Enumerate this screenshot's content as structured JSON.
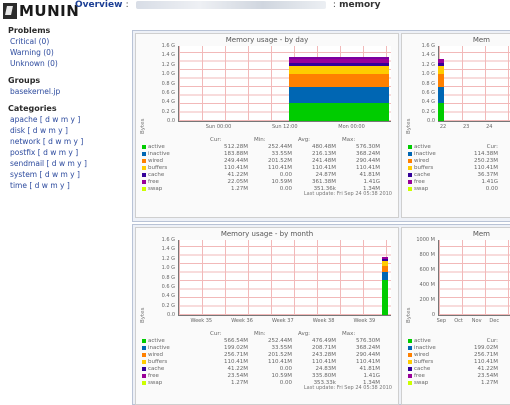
{
  "header": {
    "logo_text": "MUNIN",
    "overview_label": "Overview",
    "separator": ":",
    "page_label": "memory"
  },
  "sidebar": {
    "problems": {
      "title": "Problems",
      "items": [
        "Critical (0)",
        "Warning (0)",
        "Unknown (0)"
      ]
    },
    "groups": {
      "title": "Groups",
      "items": [
        "basekernel.jp"
      ]
    },
    "categories": {
      "title": "Categories",
      "items": [
        "apache",
        "disk",
        "network",
        "postfix",
        "sendmail",
        "system",
        "time"
      ],
      "dwmy": "[ d w m y ]"
    }
  },
  "graphs": {
    "day": {
      "title": "Memory usage - by day",
      "ylabel": "Bytes",
      "yticks": [
        "1.6 G",
        "1.4 G",
        "1.2 G",
        "1.0 G",
        "0.8 G",
        "0.6 G",
        "0.4 G",
        "0.2 G",
        "0.0"
      ],
      "xticks": [
        "Sun 00:00",
        "Sun 12:00",
        "Mon 00:00"
      ],
      "columns": [
        "Cur:",
        "Min:",
        "Avg:",
        "Max:"
      ],
      "rows": [
        {
          "name": "active",
          "color": "#00cc00",
          "cur": "512.28M",
          "min": "252.44M",
          "avg": "480.48M",
          "max": "576.30M"
        },
        {
          "name": "inactive",
          "color": "#0066b3",
          "cur": "183.88M",
          "min": "33.55M",
          "avg": "216.13M",
          "max": "368.24M"
        },
        {
          "name": "wired",
          "color": "#ff8000",
          "cur": "249.44M",
          "min": "201.52M",
          "avg": "241.48M",
          "max": "290.44M"
        },
        {
          "name": "buffers",
          "color": "#ffcc00",
          "cur": "110.41M",
          "min": "110.41M",
          "avg": "110.41M",
          "max": "110.41M"
        },
        {
          "name": "cache",
          "color": "#330099",
          "cur": "41.22M",
          "min": "0.00",
          "avg": "24.87M",
          "max": "41.81M"
        },
        {
          "name": "free",
          "color": "#990099",
          "cur": "22.05M",
          "min": "10.59M",
          "avg": "361.38M",
          "max": "1.41G"
        },
        {
          "name": "swap",
          "color": "#ccff00",
          "cur": "1.27M",
          "min": "0.00",
          "avg": "351.36k",
          "max": "1.34M"
        }
      ],
      "last_update": "Last update: Fri Sep 24 05:38 2010"
    },
    "week": {
      "title": "Mem",
      "ylabel": "Bytes",
      "yticks": [
        "1.6 G",
        "1.4 G",
        "1.2 G",
        "1.0 G",
        "0.8 G",
        "0.6 G",
        "0.4 G",
        "0.2 G",
        "0.0"
      ],
      "xticks": [
        "22",
        "23",
        "24"
      ],
      "rows": [
        {
          "name": "active",
          "color": "#00cc00",
          "cur": "Cur:"
        },
        {
          "name": "inactive",
          "color": "#0066b3",
          "cur": "114.38M"
        },
        {
          "name": "wired",
          "color": "#ff8000",
          "cur": "250.23M"
        },
        {
          "name": "buffers",
          "color": "#ffcc00",
          "cur": "110.41M"
        },
        {
          "name": "cache",
          "color": "#330099",
          "cur": "36.37M"
        },
        {
          "name": "free",
          "color": "#990099",
          "cur": "1.41G"
        },
        {
          "name": "swap",
          "color": "#ccff00",
          "cur": "0.00"
        }
      ]
    },
    "month": {
      "title": "Memory usage - by month",
      "ylabel": "Bytes",
      "yticks": [
        "1.6 G",
        "1.4 G",
        "1.2 G",
        "1.0 G",
        "0.8 G",
        "0.6 G",
        "0.4 G",
        "0.2 G",
        "0.0"
      ],
      "xticks": [
        "Week 35",
        "Week 36",
        "Week 37",
        "Week 38",
        "Week 39"
      ],
      "columns": [
        "Cur:",
        "Min:",
        "Avg:",
        "Max:"
      ],
      "rows": [
        {
          "name": "active",
          "color": "#00cc00",
          "cur": "566.54M",
          "min": "252.44M",
          "avg": "476.49M",
          "max": "576.30M"
        },
        {
          "name": "inactive",
          "color": "#0066b3",
          "cur": "199.02M",
          "min": "33.55M",
          "avg": "208.71M",
          "max": "368.24M"
        },
        {
          "name": "wired",
          "color": "#ff8000",
          "cur": "256.71M",
          "min": "201.52M",
          "avg": "243.28M",
          "max": "290.44M"
        },
        {
          "name": "buffers",
          "color": "#ffcc00",
          "cur": "110.41M",
          "min": "110.41M",
          "avg": "110.41M",
          "max": "110.41M"
        },
        {
          "name": "cache",
          "color": "#330099",
          "cur": "41.22M",
          "min": "0.00",
          "avg": "24.83M",
          "max": "41.81M"
        },
        {
          "name": "free",
          "color": "#990099",
          "cur": "23.54M",
          "min": "10.59M",
          "avg": "335.80M",
          "max": "1.41G"
        },
        {
          "name": "swap",
          "color": "#ccff00",
          "cur": "1.27M",
          "min": "0.00",
          "avg": "353.33k",
          "max": "1.34M"
        }
      ],
      "last_update": "Last update: Fri Sep 24 05:38 2010"
    },
    "year": {
      "title": "Mem",
      "ylabel": "Bytes",
      "yticks": [
        "1000 M",
        "800 M",
        "600 M",
        "400 M",
        "200 M",
        "0"
      ],
      "xticks": [
        "Sep",
        "Oct",
        "Nov",
        "Dec"
      ],
      "rows": [
        {
          "name": "active",
          "color": "#00cc00",
          "cur": "Cur:"
        },
        {
          "name": "inactive",
          "color": "#0066b3",
          "cur": "199.02M"
        },
        {
          "name": "wired",
          "color": "#ff8000",
          "cur": "256.71M"
        },
        {
          "name": "buffers",
          "color": "#ffcc00",
          "cur": "110.41M"
        },
        {
          "name": "cache",
          "color": "#330099",
          "cur": "41.22M"
        },
        {
          "name": "free",
          "color": "#990099",
          "cur": "23.54M"
        },
        {
          "name": "swap",
          "color": "#ccff00",
          "cur": "1.27M"
        }
      ]
    }
  }
}
